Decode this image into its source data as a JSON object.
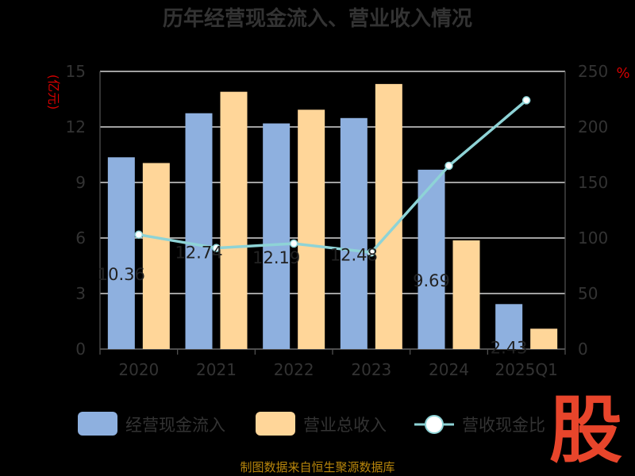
{
  "chart_data": {
    "type": "bar",
    "title": "历年经营现金流入、营业收入情况",
    "categories": [
      "2020",
      "2021",
      "2022",
      "2023",
      "2024",
      "2025Q1"
    ],
    "ylabel_left": "(亿元)",
    "ylabel_right": "%",
    "ylim_left": [
      0,
      15
    ],
    "ylim_right": [
      0,
      250
    ],
    "yticks_left": [
      "0",
      "3",
      "6",
      "9",
      "12",
      "15"
    ],
    "yticks_right": [
      "0",
      "50",
      "100",
      "150",
      "200",
      "250"
    ],
    "series": [
      {
        "name": "经营现金流入",
        "type": "bar",
        "axis": "left",
        "color": "#8eb0df",
        "values": [
          10.36,
          12.74,
          12.19,
          12.48,
          9.69,
          2.43
        ],
        "labels": [
          "10.36",
          "12.74",
          "12.19",
          "12.48",
          "9.69",
          "2.43"
        ]
      },
      {
        "name": "营业总收入",
        "type": "bar",
        "axis": "left",
        "color": "#ffd699",
        "values": [
          10.05,
          13.9,
          12.93,
          14.32,
          5.87,
          1.1
        ]
      },
      {
        "name": "营收现金比",
        "type": "line",
        "axis": "right",
        "color": "#8ed3d6",
        "values": [
          103,
          91,
          95,
          87,
          165,
          224
        ]
      }
    ],
    "grid": true,
    "legend_position": "bottom"
  },
  "footer": "制图数据来自恒生聚源数据库",
  "logo_text": "股"
}
